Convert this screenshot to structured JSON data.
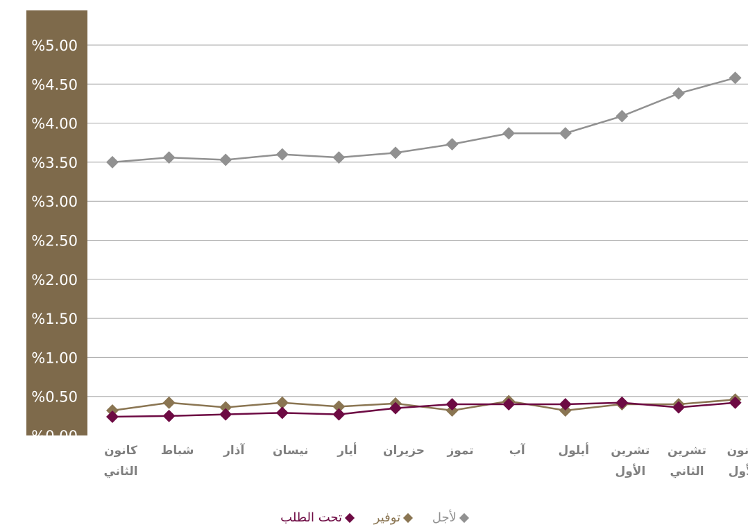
{
  "chart_data": {
    "type": "line",
    "categories": [
      "كانون الثاني",
      "شباط",
      "آذار",
      "نيسان",
      "أيار",
      "حزيران",
      "تموز",
      "آب",
      "أيلول",
      "تشرين الأول",
      "تشرين الثاني",
      "كانون الأول"
    ],
    "series": [
      {
        "name": "لأجل",
        "color": "#919191",
        "values": [
          3.5,
          3.56,
          3.53,
          3.6,
          3.56,
          3.62,
          3.73,
          3.87,
          3.87,
          4.09,
          4.38,
          4.58
        ]
      },
      {
        "name": "توفير",
        "color": "#8a7552",
        "values": [
          0.32,
          0.42,
          0.36,
          0.42,
          0.37,
          0.41,
          0.32,
          0.44,
          0.32,
          0.4,
          0.4,
          0.46
        ]
      },
      {
        "name": "تحت الطلب",
        "color": "#6d0a43",
        "values": [
          0.24,
          0.25,
          0.27,
          0.29,
          0.27,
          0.35,
          0.4,
          0.4,
          0.4,
          0.42,
          0.36,
          0.42
        ]
      }
    ],
    "ylim": [
      0,
      5
    ],
    "yticks": [
      "%0.00",
      "%0.50",
      "%1.00",
      "%1.50",
      "%2.00",
      "%2.50",
      "%3.00",
      "%3.50",
      "%4.00",
      "%4.50",
      "%5.00"
    ],
    "grid": true,
    "legend_position": "bottom",
    "colors": {
      "axis_panel": "#7e6a4b",
      "grid": "#a6a6a6",
      "tick_text": "#7f7f7f",
      "ytick_text": "#ffffff"
    }
  }
}
